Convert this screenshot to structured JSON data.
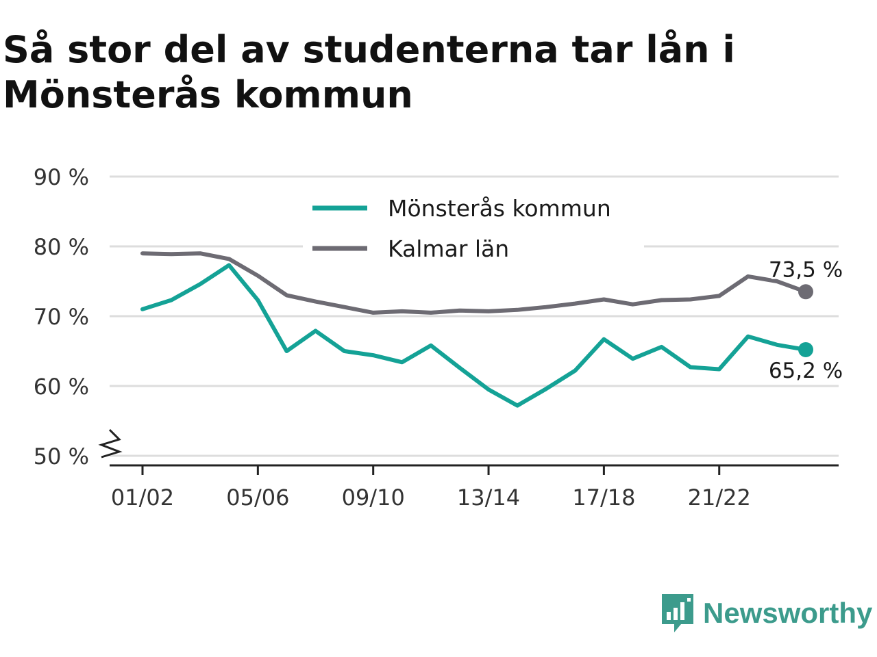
{
  "title": "Så stor del av studenterna tar lån i Mönsterås kommun",
  "logo": {
    "text": "Newsworthy",
    "icon": "newsworthy-bar-chart-icon"
  },
  "colors": {
    "monsteras": "#14a296",
    "kalmar": "#6d6b73",
    "grid": "#dddddd",
    "axis": "#222222"
  },
  "chart_data": {
    "type": "line",
    "title": "Så stor del av studenterna tar lån i Mönsterås kommun",
    "xlabel": "",
    "ylabel": "",
    "ylim": [
      50,
      90
    ],
    "y_ticks": [
      "90 %",
      "80 %",
      "70 %",
      "60 %",
      "50 %"
    ],
    "y_tick_values": [
      90,
      80,
      70,
      60,
      50
    ],
    "y_axis_break": true,
    "x": [
      "01/02",
      "02/03",
      "03/04",
      "04/05",
      "05/06",
      "06/07",
      "07/08",
      "08/09",
      "09/10",
      "10/11",
      "11/12",
      "12/13",
      "13/14",
      "14/15",
      "15/16",
      "16/17",
      "17/18",
      "18/19",
      "19/20",
      "20/21",
      "21/22",
      "22/23",
      "23/24",
      "24/25"
    ],
    "x_ticks": [
      "01/02",
      "05/06",
      "09/10",
      "13/14",
      "17/18",
      "21/22"
    ],
    "grid": true,
    "legend_position": "top-center",
    "series": [
      {
        "name": "Mönsterås kommun",
        "color": "#14a296",
        "values": [
          71.0,
          72.3,
          74.6,
          77.3,
          72.3,
          65.0,
          67.9,
          65.0,
          64.4,
          63.4,
          65.8,
          62.6,
          59.5,
          57.2,
          59.6,
          62.2,
          66.7,
          63.9,
          65.6,
          62.7,
          62.4,
          67.1,
          65.9,
          65.2
        ],
        "end_label": "65,2 %"
      },
      {
        "name": "Kalmar län",
        "color": "#6d6b73",
        "values": [
          79.0,
          78.9,
          79.0,
          78.2,
          75.8,
          73.0,
          72.1,
          71.3,
          70.5,
          70.7,
          70.5,
          70.8,
          70.7,
          70.9,
          71.3,
          71.8,
          72.4,
          71.7,
          72.3,
          72.4,
          72.9,
          75.7,
          75.0,
          73.5
        ],
        "end_label": "73,5 %"
      }
    ]
  }
}
